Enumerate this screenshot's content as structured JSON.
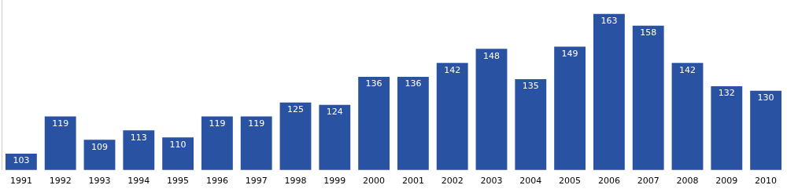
{
  "chart_data": {
    "type": "bar",
    "categories": [
      "1991",
      "1992",
      "1993",
      "1994",
      "1995",
      "1996",
      "1997",
      "1998",
      "1999",
      "2000",
      "2001",
      "2002",
      "2003",
      "2004",
      "2005",
      "2006",
      "2007",
      "2008",
      "2009",
      "2010"
    ],
    "values": [
      103,
      119,
      109,
      113,
      110,
      119,
      119,
      125,
      124,
      136,
      136,
      142,
      148,
      135,
      149,
      163,
      158,
      142,
      132,
      130
    ],
    "color": "#2a52a3",
    "ylim": [
      96,
      169
    ],
    "grid": false,
    "data_labels": true,
    "tick_labels": "x"
  }
}
